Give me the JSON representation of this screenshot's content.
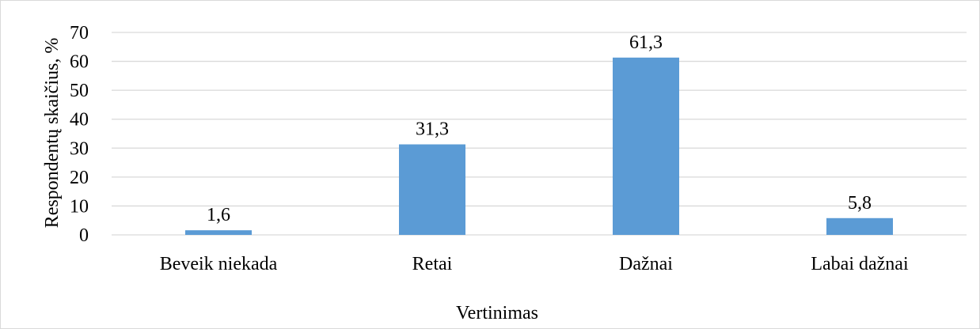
{
  "chart_data": {
    "type": "bar",
    "categories": [
      "Beveik niekada",
      "Retai",
      "Dažnai",
      "Labai dažnai"
    ],
    "values": [
      1.6,
      31.3,
      61.3,
      5.8
    ],
    "data_labels": [
      "1,6",
      "31,3",
      "61,3",
      "5,8"
    ],
    "title": "",
    "xlabel": "Vertinimas",
    "ylabel": "Respondentų skaičius, %",
    "ylim": [
      0,
      70
    ],
    "yticks": [
      0,
      10,
      20,
      30,
      40,
      50,
      60,
      70
    ],
    "grid": true,
    "legend": "none",
    "bar_color": "#5b9bd5",
    "gridline_color": "#d9d9d9"
  }
}
